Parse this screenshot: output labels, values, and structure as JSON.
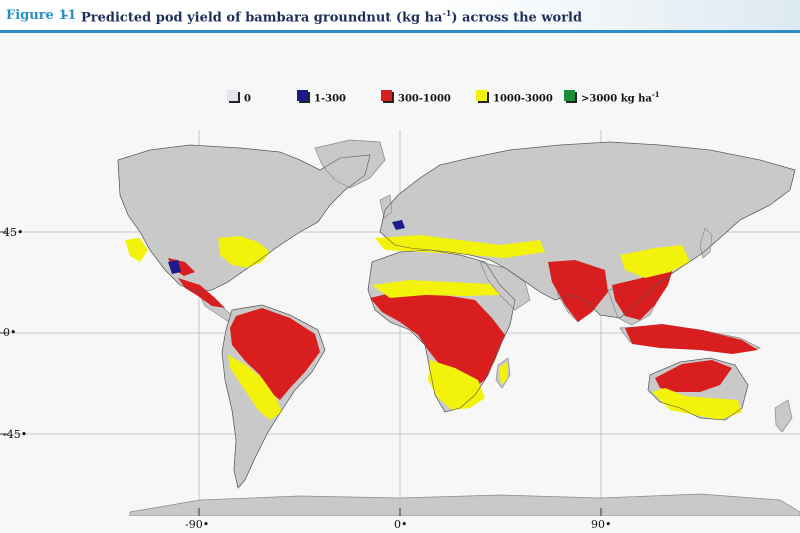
{
  "header": {
    "figure_label": "Figure 11",
    "separator": "-",
    "title": "Predicted pod yield of bambara groundnut (kg ha",
    "title_sup": "-1",
    "title_end": ") across the world"
  },
  "legend": [
    {
      "label": "0",
      "sup": "",
      "color": "#e4e4ee"
    },
    {
      "label": "1-300",
      "sup": "",
      "color": "#1a1a8c"
    },
    {
      "label": "300-1000",
      "sup": "",
      "color": "#d81e1e"
    },
    {
      "label": "1000-3000",
      "sup": "",
      "color": "#f2f20a"
    },
    {
      "label": ">3000 kg ha",
      "sup": "-1",
      "color": "#1a8c3a"
    }
  ],
  "axes": {
    "latitude_ticks": [
      "45•",
      "0•",
      "-45•"
    ],
    "longitude_ticks": [
      "-90•",
      "0•",
      "90•"
    ]
  },
  "colors": {
    "land": "#c9c9c9",
    "border": "#8a8a8a",
    "ocean": "#f7f7f7",
    "yield_300_1000": "#d81e1e",
    "yield_1000_3000": "#f2f20a",
    "yield_1_300": "#1a1a8c"
  }
}
